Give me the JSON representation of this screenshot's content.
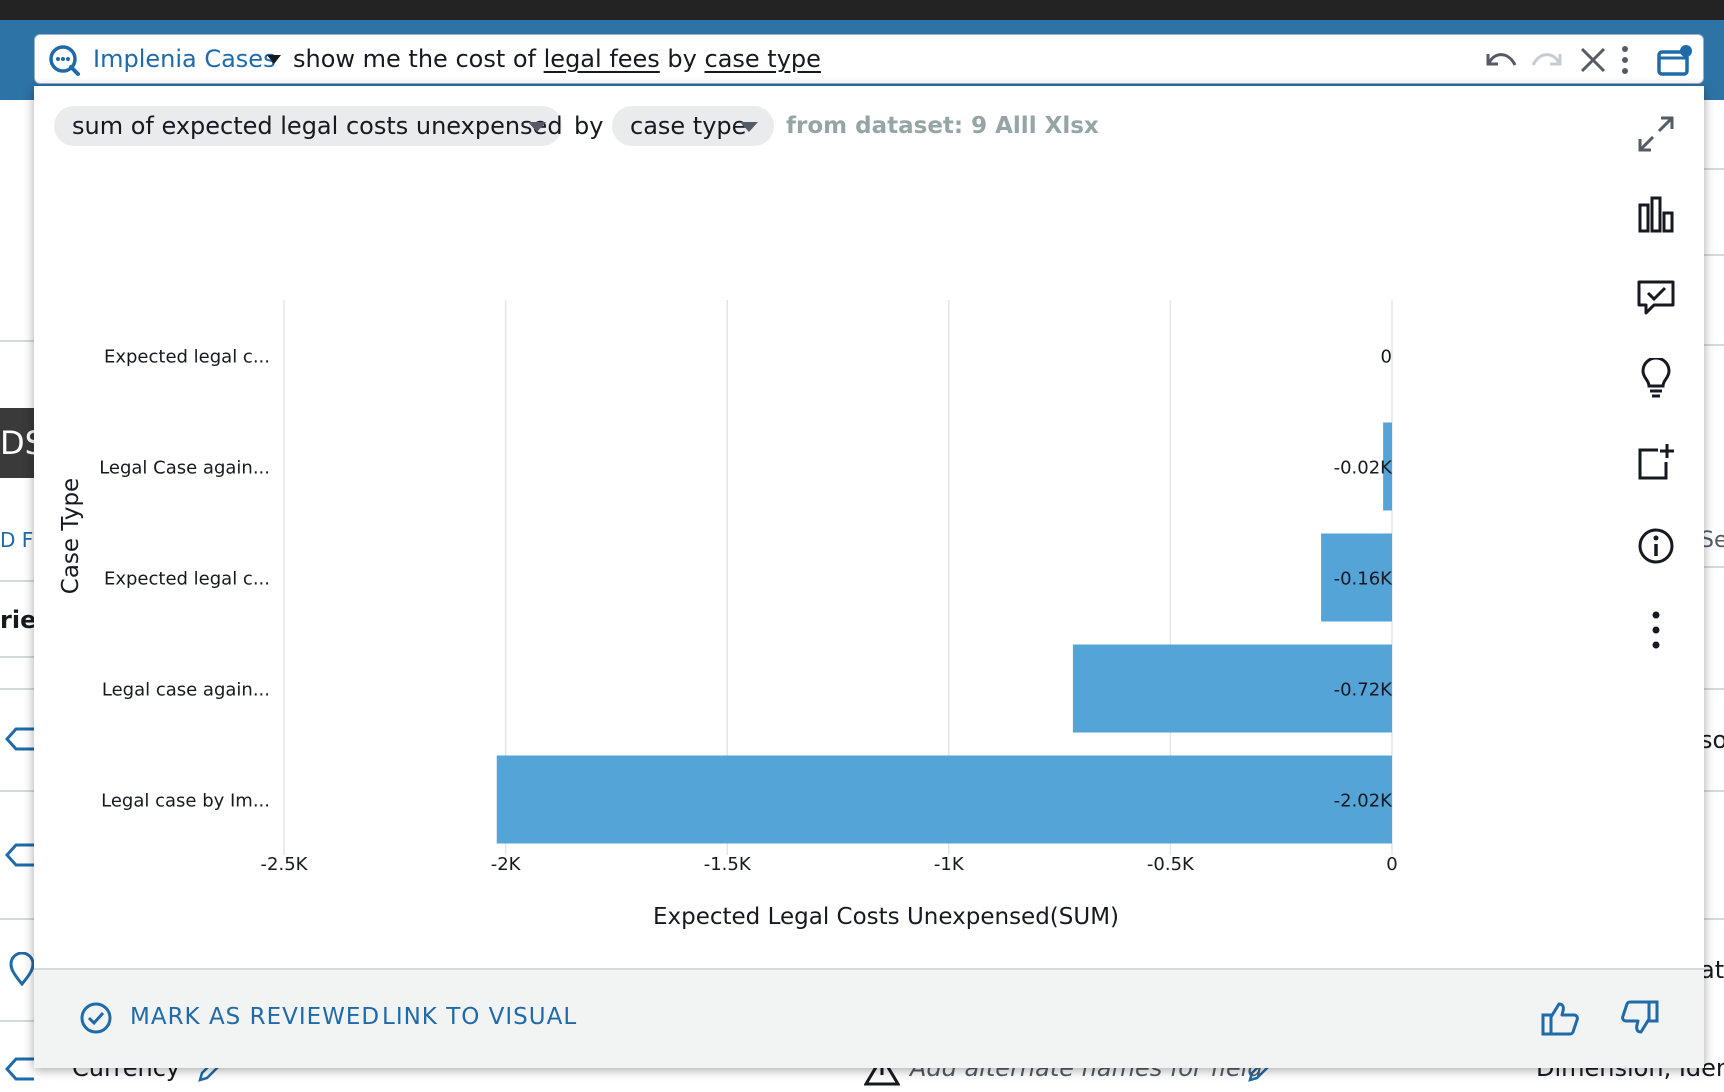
{
  "search": {
    "topic": "Implenia Cases",
    "query_prefix": "show me the cost of ",
    "query_link1": "legal fees",
    "query_mid": " by ",
    "query_link2": "case type"
  },
  "answer": {
    "measure": "sum of expected legal costs unexpensed",
    "by": "by",
    "dimension": "case type",
    "dataset": "from dataset: 9 Alll Xlsx"
  },
  "chart_data": {
    "type": "bar",
    "orientation": "horizontal",
    "categories": [
      "Expected legal c...",
      "Legal Case again...",
      "Expected legal c...",
      "Legal case again...",
      "Legal case by Im..."
    ],
    "values": [
      0,
      -0.02,
      -0.16,
      -0.72,
      -2.02
    ],
    "data_labels": [
      "0",
      "-0.02K",
      "-0.16K",
      "-0.72K",
      "-2.02K"
    ],
    "xticks": [
      "-2.5K",
      "-2K",
      "-1.5K",
      "-1K",
      "-0.5K",
      "0"
    ],
    "xtick_values": [
      -2.5,
      -2,
      -1.5,
      -1,
      -0.5,
      0
    ],
    "xlim": [
      -2.5,
      0
    ],
    "xlabel": "Expected Legal Costs Unexpensed(SUM)",
    "ylabel": "Case Type",
    "unit": "K",
    "grid": true,
    "bar_color": "#55a4d8"
  },
  "footer": {
    "mark_reviewed": "MARK AS REVIEWED",
    "link_to_visual": "LINK TO VISUAL"
  },
  "background": {
    "tile_text": "DS",
    "frag1": "D F",
    "frag2": "rier",
    "frag_right1": "Sea",
    "frag_right2": "so",
    "frag_right3": "at",
    "currency": "Currency",
    "alt_names": "Add alternate names for field",
    "dimension": "Dimension, Ident"
  },
  "colors": {
    "accent": "#1f6aa8",
    "bar": "#55a4d8",
    "band": "#2e73a6"
  }
}
